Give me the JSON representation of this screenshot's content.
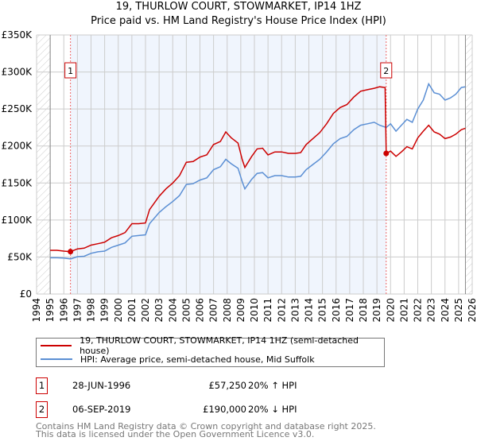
{
  "title": "19, THURLOW COURT, STOWMARKET, IP14 1HZ",
  "subtitle": "Price paid vs. HM Land Registry's House Price Index (HPI)",
  "chart_data": {
    "type": "line",
    "title": "19, THURLOW COURT, STOWMARKET, IP14 1HZ",
    "subtitle": "Price paid vs. HM Land Registry's House Price Index (HPI)",
    "xlim": [
      1994,
      2026
    ],
    "ylim": [
      0,
      350000
    ],
    "x_ticks": [
      "1994",
      "1995",
      "1996",
      "1997",
      "1998",
      "1999",
      "2000",
      "2001",
      "2002",
      "2003",
      "2004",
      "2005",
      "2006",
      "2007",
      "2008",
      "2009",
      "2010",
      "2011",
      "2012",
      "2013",
      "2014",
      "2015",
      "2016",
      "2017",
      "2018",
      "2019",
      "2020",
      "2021",
      "2022",
      "2023",
      "2024",
      "2025",
      "2026"
    ],
    "y_ticks": [
      {
        "v": 0,
        "label": "£0"
      },
      {
        "v": 50000,
        "label": "£50K"
      },
      {
        "v": 100000,
        "label": "£100K"
      },
      {
        "v": 150000,
        "label": "£150K"
      },
      {
        "v": 200000,
        "label": "£200K"
      },
      {
        "v": 250000,
        "label": "£250K"
      },
      {
        "v": 300000,
        "label": "£300K"
      },
      {
        "v": 350000,
        "label": "£350K"
      }
    ],
    "grid": true,
    "colors": {
      "property": "#cc0000",
      "hpi": "#5b8fd4",
      "shade": "#f0f5fd"
    },
    "series": [
      {
        "name": "19, THURLOW COURT, STOWMARKET, IP14 1HZ (semi-detached house)",
        "unit": "£K",
        "points": [
          [
            1995,
            59
          ],
          [
            1995.5,
            59
          ],
          [
            1996,
            58
          ],
          [
            1996.49,
            57.25
          ],
          [
            1997,
            61
          ],
          [
            1997.5,
            62
          ],
          [
            1998,
            66
          ],
          [
            1998.5,
            68
          ],
          [
            1999,
            70
          ],
          [
            1999.5,
            76
          ],
          [
            2000,
            79
          ],
          [
            2000.5,
            83
          ],
          [
            2001,
            95
          ],
          [
            2001.5,
            95
          ],
          [
            2002,
            96
          ],
          [
            2002.3,
            114
          ],
          [
            2003,
            132
          ],
          [
            2003.5,
            142
          ],
          [
            2004,
            150
          ],
          [
            2004.5,
            160
          ],
          [
            2005,
            178
          ],
          [
            2005.5,
            179
          ],
          [
            2006,
            185
          ],
          [
            2006.5,
            188
          ],
          [
            2007,
            202
          ],
          [
            2007.5,
            206
          ],
          [
            2007.9,
            219
          ],
          [
            2008.3,
            211
          ],
          [
            2008.8,
            204
          ],
          [
            2009.1,
            182
          ],
          [
            2009.3,
            171
          ],
          [
            2009.8,
            186
          ],
          [
            2010.2,
            196
          ],
          [
            2010.6,
            197
          ],
          [
            2011,
            188
          ],
          [
            2011.5,
            192
          ],
          [
            2012,
            192
          ],
          [
            2012.5,
            190
          ],
          [
            2013,
            190
          ],
          [
            2013.4,
            191
          ],
          [
            2013.8,
            202
          ],
          [
            2014.3,
            210
          ],
          [
            2014.8,
            218
          ],
          [
            2015.3,
            230
          ],
          [
            2015.8,
            244
          ],
          [
            2016.3,
            252
          ],
          [
            2016.8,
            256
          ],
          [
            2017.3,
            266
          ],
          [
            2017.8,
            274
          ],
          [
            2018.3,
            276
          ],
          [
            2018.8,
            278
          ],
          [
            2019.2,
            280
          ],
          [
            2019.6,
            279
          ],
          [
            2019.68,
            190
          ],
          [
            2020,
            193
          ],
          [
            2020.4,
            186
          ],
          [
            2020.8,
            192
          ],
          [
            2021.2,
            199
          ],
          [
            2021.6,
            196
          ],
          [
            2022,
            211
          ],
          [
            2022.4,
            220
          ],
          [
            2022.8,
            228
          ],
          [
            2023.2,
            219
          ],
          [
            2023.6,
            216
          ],
          [
            2024,
            210
          ],
          [
            2024.4,
            212
          ],
          [
            2024.8,
            216
          ],
          [
            2025.2,
            222
          ],
          [
            2025.5,
            224
          ]
        ]
      },
      {
        "name": "HPI: Average price, semi-detached house, Mid Suffolk",
        "unit": "£K",
        "points": [
          [
            1995,
            49
          ],
          [
            1995.5,
            49
          ],
          [
            1996,
            48.5
          ],
          [
            1996.5,
            47.5
          ],
          [
            1997,
            50.5
          ],
          [
            1997.5,
            51
          ],
          [
            1998,
            55
          ],
          [
            1998.5,
            57
          ],
          [
            1999,
            58
          ],
          [
            1999.5,
            63
          ],
          [
            2000,
            66
          ],
          [
            2000.5,
            69
          ],
          [
            2001,
            78
          ],
          [
            2001.5,
            79
          ],
          [
            2002,
            80
          ],
          [
            2002.3,
            95
          ],
          [
            2003,
            110
          ],
          [
            2003.5,
            118
          ],
          [
            2004,
            125
          ],
          [
            2004.5,
            133
          ],
          [
            2005,
            148
          ],
          [
            2005.5,
            149
          ],
          [
            2006,
            154
          ],
          [
            2006.5,
            157
          ],
          [
            2007,
            168
          ],
          [
            2007.5,
            172
          ],
          [
            2007.9,
            182
          ],
          [
            2008.3,
            176
          ],
          [
            2008.8,
            170
          ],
          [
            2009.1,
            152
          ],
          [
            2009.3,
            142
          ],
          [
            2009.8,
            155
          ],
          [
            2010.2,
            163
          ],
          [
            2010.6,
            164
          ],
          [
            2011,
            157
          ],
          [
            2011.5,
            160
          ],
          [
            2012,
            160
          ],
          [
            2012.5,
            158
          ],
          [
            2013,
            158
          ],
          [
            2013.4,
            159
          ],
          [
            2013.8,
            168
          ],
          [
            2014.3,
            175
          ],
          [
            2014.8,
            182
          ],
          [
            2015.3,
            192
          ],
          [
            2015.8,
            203
          ],
          [
            2016.3,
            210
          ],
          [
            2016.8,
            213
          ],
          [
            2017.3,
            222
          ],
          [
            2017.8,
            228
          ],
          [
            2018.3,
            230
          ],
          [
            2018.8,
            232
          ],
          [
            2019.2,
            228
          ],
          [
            2019.68,
            225
          ],
          [
            2020,
            230
          ],
          [
            2020.4,
            220
          ],
          [
            2020.8,
            228
          ],
          [
            2021.2,
            236
          ],
          [
            2021.6,
            232
          ],
          [
            2022,
            250
          ],
          [
            2022.4,
            262
          ],
          [
            2022.8,
            284
          ],
          [
            2023.2,
            272
          ],
          [
            2023.6,
            270
          ],
          [
            2024,
            262
          ],
          [
            2024.4,
            265
          ],
          [
            2024.8,
            270
          ],
          [
            2025.2,
            279
          ],
          [
            2025.5,
            280
          ]
        ]
      }
    ],
    "data_end": 2025.5,
    "sales": [
      {
        "id": "1",
        "x": 1996.49,
        "value": 57250
      },
      {
        "id": "2",
        "x": 2019.68,
        "value": 190000
      }
    ]
  },
  "legend": {
    "property": "19, THURLOW COURT, STOWMARKET, IP14 1HZ (semi-detached house)",
    "hpi": "HPI: Average price, semi-detached house, Mid Suffolk"
  },
  "transactions": [
    {
      "id": "1",
      "date": "28-JUN-1996",
      "price": "£57,250",
      "hpi": "20% ↑ HPI"
    },
    {
      "id": "2",
      "date": "06-SEP-2019",
      "price": "£190,000",
      "hpi": "20% ↓ HPI"
    }
  ],
  "footer": {
    "line1": "Contains HM Land Registry data © Crown copyright and database right 2025.",
    "line2": "This data is licensed under the Open Government Licence v3.0."
  }
}
